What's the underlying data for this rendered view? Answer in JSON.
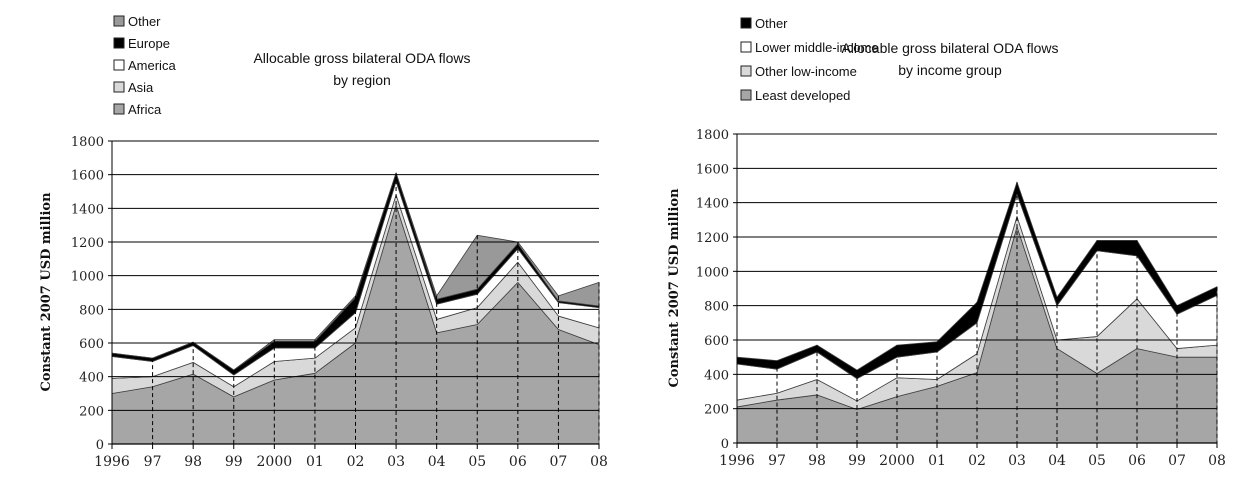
{
  "chart_data": [
    {
      "type": "area",
      "stacked": true,
      "title": "Allocable gross bilateral ODA flows by region",
      "title_lines": [
        "Allocable gross bilateral  ODA flows",
        "by region"
      ],
      "ylabel": "Constant 2007 USD million",
      "ylim": [
        0,
        1800
      ],
      "yticks": [
        "0",
        "200",
        "400",
        "600",
        "800",
        "1000",
        "1200",
        "1400",
        "1600",
        "1800"
      ],
      "categories": [
        "1996",
        "97",
        "98",
        "99",
        "2000",
        "01",
        "02",
        "03",
        "04",
        "05",
        "06",
        "07",
        "08"
      ],
      "grid": true,
      "legend_position": "top-left",
      "legend_order": [
        "Other",
        "Europe",
        "America",
        "Asia",
        "Africa"
      ],
      "series": [
        {
          "name": "Africa",
          "color": "#a6a6a6",
          "values": [
            300,
            340,
            415,
            280,
            380,
            420,
            600,
            1420,
            660,
            710,
            960,
            680,
            590
          ]
        },
        {
          "name": "Asia",
          "color": "#d9d9d9",
          "values": [
            90,
            60,
            70,
            60,
            110,
            90,
            90,
            60,
            80,
            100,
            120,
            80,
            100
          ]
        },
        {
          "name": "America",
          "color": "#ffffff",
          "values": [
            130,
            90,
            100,
            70,
            80,
            60,
            90,
            80,
            90,
            80,
            80,
            80,
            120
          ]
        },
        {
          "name": "Europe",
          "color": "#000000",
          "values": [
            20,
            20,
            20,
            30,
            40,
            40,
            90,
            50,
            30,
            30,
            30,
            10,
            10
          ]
        },
        {
          "name": "Other",
          "color": "#999999",
          "values": [
            0,
            0,
            0,
            0,
            10,
            10,
            10,
            0,
            20,
            320,
            10,
            30,
            140
          ]
        }
      ]
    },
    {
      "type": "area",
      "stacked": true,
      "title": "Allocable gross bilateral ODA flows by income group",
      "title_lines": [
        "Allocable gross bilateral  ODA flows",
        "by income group"
      ],
      "ylabel": "Constant 2007 USD million",
      "ylim": [
        0,
        1800
      ],
      "yticks": [
        "0",
        "200",
        "400",
        "600",
        "800",
        "1000",
        "1200",
        "1400",
        "1600",
        "1800"
      ],
      "categories": [
        "1996",
        "97",
        "98",
        "99",
        "2000",
        "01",
        "02",
        "03",
        "04",
        "05",
        "06",
        "07",
        "08"
      ],
      "grid": true,
      "legend_position": "top-left",
      "legend_order": [
        "Other",
        "Lower middle-income",
        "Other low-income",
        "Least developed"
      ],
      "series": [
        {
          "name": "Least developed",
          "color": "#a6a6a6",
          "values": [
            210,
            250,
            280,
            195,
            270,
            330,
            410,
            1260,
            550,
            405,
            550,
            500,
            500
          ]
        },
        {
          "name": "Other low-income",
          "color": "#d9d9d9",
          "values": [
            40,
            40,
            90,
            50,
            110,
            40,
            110,
            60,
            50,
            215,
            290,
            50,
            70
          ]
        },
        {
          "name": "Lower middle-income",
          "color": "#ffffff",
          "values": [
            210,
            140,
            160,
            130,
            120,
            160,
            180,
            130,
            200,
            500,
            250,
            200,
            290
          ]
        },
        {
          "name": "Other",
          "color": "#000000",
          "values": [
            40,
            50,
            40,
            50,
            70,
            60,
            120,
            70,
            50,
            60,
            90,
            50,
            50
          ]
        }
      ]
    }
  ]
}
